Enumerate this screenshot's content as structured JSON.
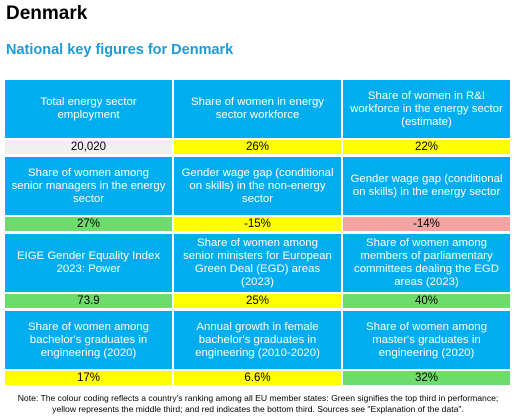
{
  "header": {
    "title": "Denmark",
    "subtitle": "National key figures for Denmark"
  },
  "colors": {
    "header_bg": "#00aeef",
    "green": "#6ddc6d",
    "yellow": "#ffff00",
    "red": "#f4a3a3",
    "grey": "#f0f0f0"
  },
  "figures": [
    {
      "label": "Total energy sector employment",
      "value": "20,020",
      "color": "#f0f0f0"
    },
    {
      "label": "Share of women in energy sector workforce",
      "value": "26%",
      "color": "#ffff00"
    },
    {
      "label": "Share of women in R&I workforce in the energy sector (estimate)",
      "value": "22%",
      "color": "#ffff00"
    },
    {
      "label": "Share of women among senior managers in the energy sector",
      "value": "27%",
      "color": "#6ddc6d"
    },
    {
      "label": "Gender wage gap (conditional on skills) in the non-energy sector",
      "value": "-15%",
      "color": "#ffff00"
    },
    {
      "label": "Gender wage gap (conditional on skills) in the energy sector",
      "value": "-14%",
      "color": "#f4a3a3"
    },
    {
      "label": "EIGE  Gender Equality Index 2023: Power",
      "value": "73.9",
      "color": "#6ddc6d"
    },
    {
      "label": "Share of women among senior ministers for European Green Deal (EGD) areas (2023)",
      "value": "25%",
      "color": "#ffff00"
    },
    {
      "label": "Share of women among members of parliamentary committees dealing the EGD areas (2023)",
      "value": "40%",
      "color": "#6ddc6d"
    },
    {
      "label": "Share of women among bachelor's graduates in engineering (2020)",
      "value": "17%",
      "color": "#ffff00"
    },
    {
      "label": "Annual growth in female bachelor's graduates in engineering (2010-2020)",
      "value": "6.6%",
      "color": "#ffff00"
    },
    {
      "label": "Share of women among master's graduates in engineering (2020)",
      "value": "32%",
      "color": "#6ddc6d"
    }
  ],
  "footer": {
    "note": "Note: The colour coding reflects a country's ranking among all EU member states: Green signifies the top third in performance; yellow represents the middle third; and red indicates the bottom third. Sources see \"Explanation of the data\"."
  }
}
